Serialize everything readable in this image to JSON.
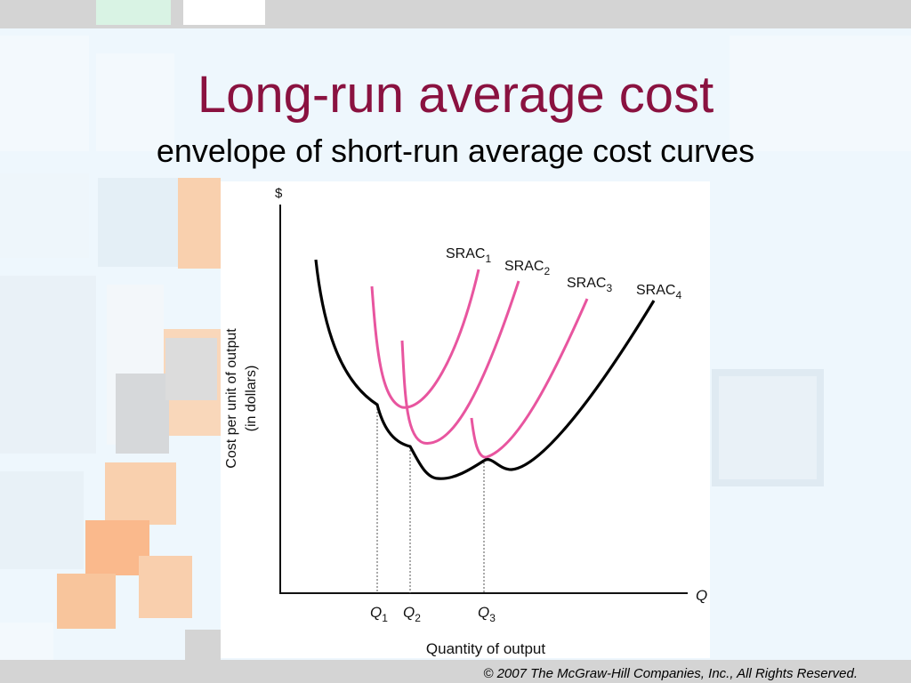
{
  "slide": {
    "title": "Long-run average cost",
    "subtitle": "envelope of short-run average cost curves",
    "copyright": "© 2007 The McGraw-Hill Companies, Inc., All Rights Reserved."
  },
  "colors": {
    "title": "#8a1240",
    "srac_curves": "#e8559f",
    "lrac_curve": "#000000",
    "background": "#eef7fd",
    "deco_orange": "#f9d0ae",
    "deco_gray": "#d6d8da"
  },
  "diagram": {
    "y_axis": {
      "symbol": "$",
      "label_line1": "Cost per unit of output",
      "label_line2": "(in dollars)"
    },
    "x_axis": {
      "symbol": "Q",
      "label": "Quantity of output"
    },
    "curves": [
      {
        "id": "srac1",
        "base": "SRAC",
        "sub": "1"
      },
      {
        "id": "srac2",
        "base": "SRAC",
        "sub": "2"
      },
      {
        "id": "srac3",
        "base": "SRAC",
        "sub": "3"
      },
      {
        "id": "srac4",
        "base": "SRAC",
        "sub": "4"
      }
    ],
    "quantities": [
      {
        "id": "q1",
        "base": "Q",
        "sub": "1"
      },
      {
        "id": "q2",
        "base": "Q",
        "sub": "2"
      },
      {
        "id": "q3",
        "base": "Q",
        "sub": "3"
      }
    ]
  }
}
